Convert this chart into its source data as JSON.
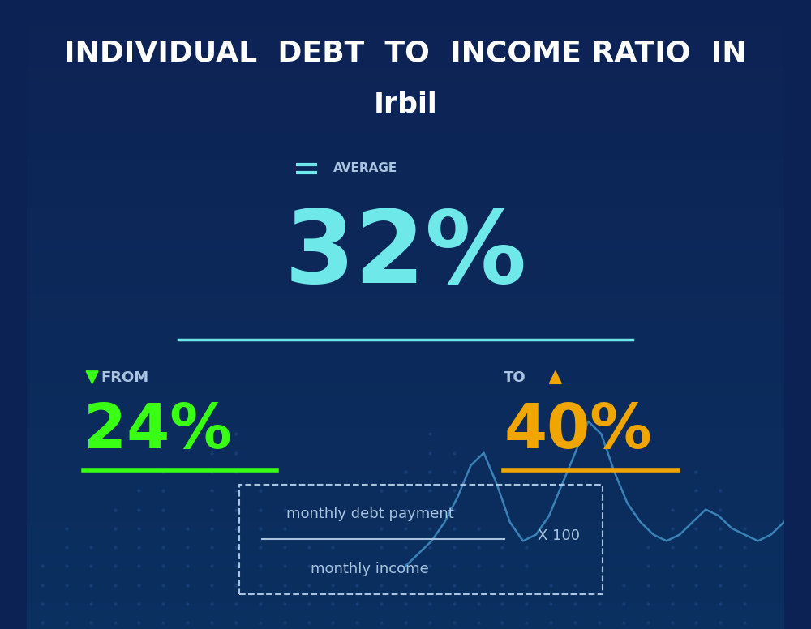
{
  "title_line1": "INDIVIDUAL  DEBT  TO  INCOME RATIO  IN",
  "title_line2": "Irbil",
  "bg_color_top": "#0d2254",
  "bg_color_bottom": "#0a3060",
  "average_label": "AVERAGE",
  "average_value": "32%",
  "average_color": "#6ee8e8",
  "divider_color": "#6ee8e8",
  "from_label": "FROM",
  "from_value": "24%",
  "from_color": "#39ff14",
  "from_underline_color": "#39ff14",
  "to_label": "TO",
  "to_value": "40%",
  "to_color": "#f0a500",
  "to_underline_color": "#f0a500",
  "formula_numerator": "monthly debt payment",
  "formula_denominator": "monthly income",
  "formula_multiplier": "X 100",
  "formula_text_color": "#aac4e0",
  "formula_border_color": "#aac4e0",
  "title_color": "#ffffff",
  "label_color": "#aac4e0"
}
